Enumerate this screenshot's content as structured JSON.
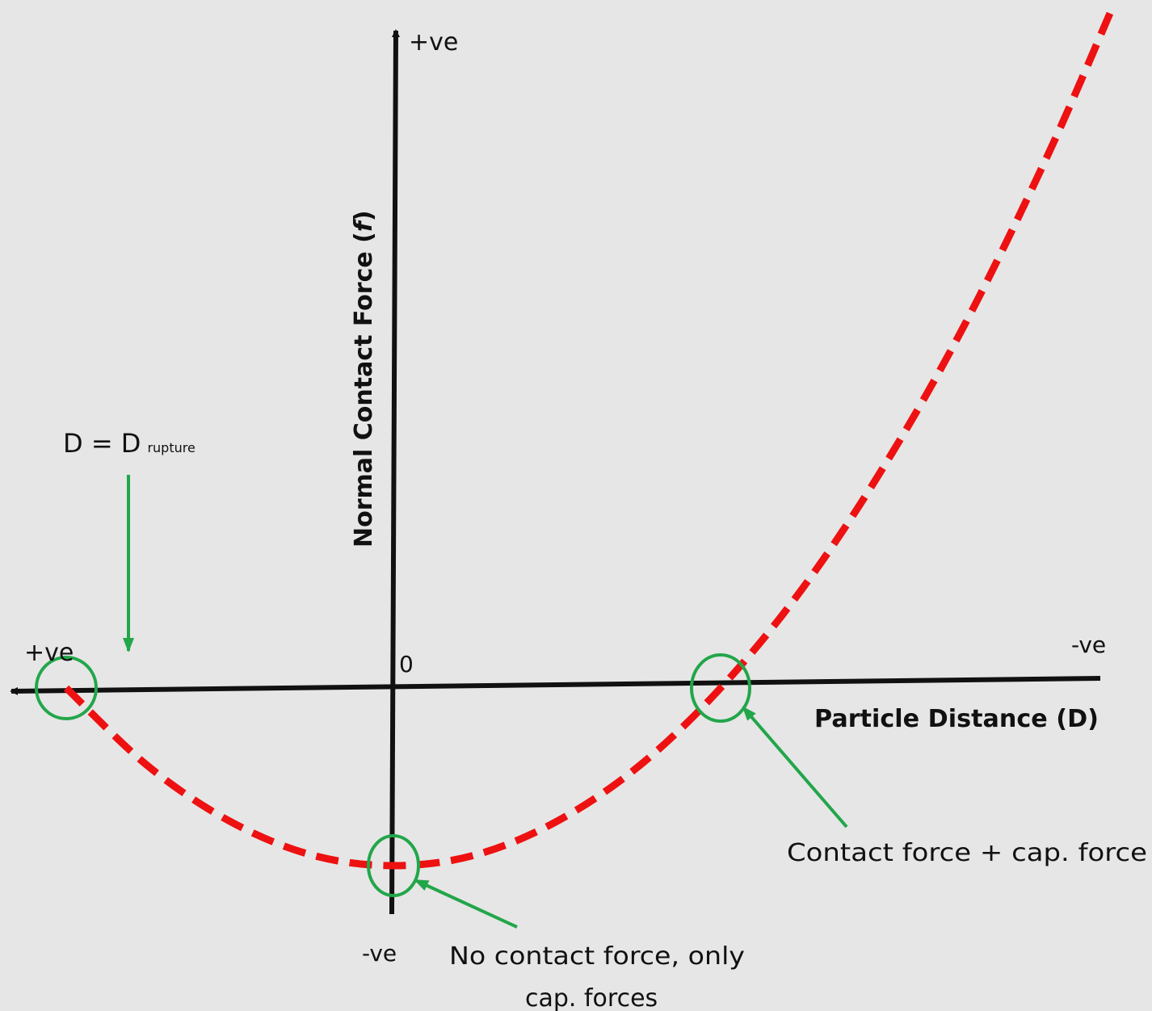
{
  "colors": {
    "background": "#e6e6e6",
    "axis": "#111111",
    "curve": "#ee1111",
    "annotation": "#22a64a"
  },
  "axes": {
    "y_title": "Normal Contact Force (f)",
    "y_title_main": "Normal Contact Force (",
    "y_title_var": "f",
    "y_title_close": ")",
    "y_positive_label": "+ve",
    "y_negative_label": "-ve",
    "x_title": "Particle Distance (D)",
    "x_positive_label": "+ve",
    "x_negative_label": "-ve",
    "origin_label": "0",
    "x_direction": "reversed"
  },
  "annotations": {
    "rupture": {
      "prefix": "D = D",
      "subscript": "rupture"
    },
    "crossing": {
      "text": "Contact force + cap. force"
    },
    "minimum": {
      "line1": "No contact force, only",
      "line2": "cap. forces"
    }
  },
  "chart_data": {
    "type": "line",
    "series": [
      {
        "style": "dashed",
        "x": [
          -1.0,
          -0.75,
          -0.5,
          -0.25,
          0.0,
          0.25,
          0.5,
          0.75,
          1.0,
          1.25,
          1.5,
          1.75,
          2.0,
          2.2
        ],
        "y": [
          0.0,
          -0.44,
          -0.75,
          -0.94,
          -1.0,
          -0.94,
          -0.75,
          -0.44,
          0.0,
          0.56,
          1.25,
          2.06,
          3.0,
          3.84
        ]
      }
    ],
    "marked_points": [
      {
        "name": "rupture",
        "x": -1.0,
        "y": 0.0
      },
      {
        "name": "minimum",
        "x": 0.0,
        "y": -1.0
      },
      {
        "name": "crossing",
        "x": 1.0,
        "y": 0.0
      }
    ]
  }
}
